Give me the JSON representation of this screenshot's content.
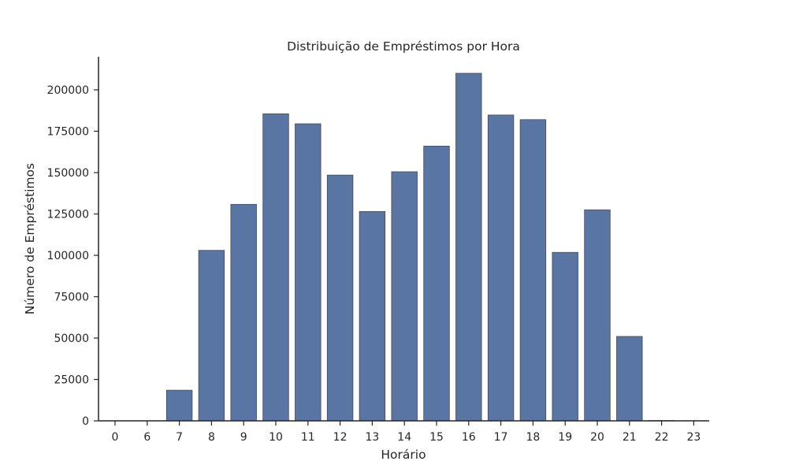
{
  "chart_data": {
    "type": "bar",
    "title": "Distribuição de Empréstimos por Hora",
    "xlabel": "Horário",
    "ylabel": "Número de Empréstimos",
    "categories": [
      "0",
      "6",
      "7",
      "8",
      "9",
      "10",
      "11",
      "12",
      "13",
      "14",
      "15",
      "16",
      "17",
      "18",
      "19",
      "20",
      "21",
      "22",
      "23"
    ],
    "values": [
      10,
      30,
      18500,
      103000,
      130800,
      185500,
      179500,
      148500,
      126500,
      150500,
      166000,
      210000,
      184800,
      182000,
      101800,
      127500,
      51000,
      200,
      80
    ],
    "ylim": [
      0,
      220000
    ],
    "yticks": [
      0,
      25000,
      50000,
      75000,
      100000,
      125000,
      150000,
      175000,
      200000
    ],
    "ytick_labels": [
      "0",
      "25000",
      "50000",
      "75000",
      "100000",
      "125000",
      "150000",
      "175000",
      "200000"
    ],
    "grid": false,
    "colors": {
      "bar": "#5975a4",
      "bar_edge": "#4a4a4a",
      "axis": "#262626",
      "text": "#262626"
    }
  }
}
